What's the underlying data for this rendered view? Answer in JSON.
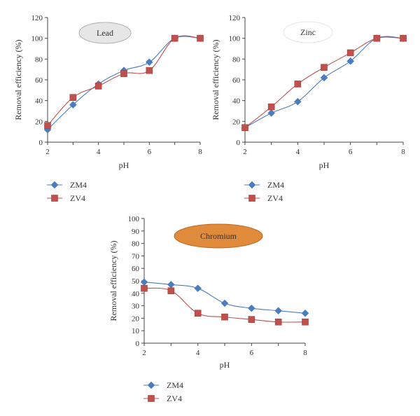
{
  "chart_data": [
    {
      "type": "line",
      "title": "Lead",
      "xlabel": "pH",
      "ylabel": "Removal efficiency (%)",
      "xlim": [
        2,
        8
      ],
      "ylim": [
        0,
        120
      ],
      "xticks": [
        2,
        4,
        6,
        8
      ],
      "yticks": [
        0,
        20,
        40,
        60,
        80,
        100,
        120
      ],
      "x": [
        2,
        3,
        4,
        5,
        6,
        7,
        8
      ],
      "series": [
        {
          "name": "ZM4",
          "values": [
            12,
            36,
            56,
            69,
            77,
            100,
            100
          ],
          "color": "#4a7cc0",
          "marker": "diamond"
        },
        {
          "name": "ZV4",
          "values": [
            16,
            43,
            54,
            66,
            69,
            100,
            100
          ],
          "color": "#c0504d",
          "marker": "square"
        }
      ],
      "badge": {
        "fill": "#e6e6e6",
        "stroke": "#b0b0b0"
      },
      "legend_position": "bottom-left"
    },
    {
      "type": "line",
      "title": "Zinc",
      "xlabel": "pH",
      "ylabel": "Removal efficiency (%)",
      "xlim": [
        2,
        8
      ],
      "ylim": [
        0,
        120
      ],
      "xticks": [
        2,
        4,
        6,
        8
      ],
      "yticks": [
        0,
        20,
        40,
        60,
        80,
        100,
        120
      ],
      "x": [
        2,
        3,
        4,
        5,
        6,
        7,
        8
      ],
      "series": [
        {
          "name": "ZM4",
          "values": [
            14,
            28,
            39,
            62,
            78,
            100,
            100
          ],
          "color": "#4a7cc0",
          "marker": "diamond"
        },
        {
          "name": "ZV4",
          "values": [
            14,
            34,
            56,
            72,
            86,
            100,
            100
          ],
          "color": "#c0504d",
          "marker": "square"
        }
      ],
      "badge": {
        "fill": "#ffffff",
        "stroke": "#e4e4e4"
      },
      "legend_position": "bottom-left"
    },
    {
      "type": "line",
      "title": "Chromium",
      "xlabel": "pH",
      "ylabel": "Removal efficiency (%)",
      "xlim": [
        2,
        8
      ],
      "ylim": [
        0,
        100
      ],
      "xticks": [
        2,
        4,
        6,
        8
      ],
      "yticks": [
        0,
        10,
        20,
        30,
        40,
        50,
        60,
        70,
        80,
        90,
        100
      ],
      "x": [
        2,
        3,
        4,
        5,
        6,
        7,
        8
      ],
      "series": [
        {
          "name": "ZM4",
          "values": [
            49,
            47,
            44,
            32,
            28,
            26,
            24
          ],
          "color": "#4a7cc0",
          "marker": "diamond"
        },
        {
          "name": "ZV4",
          "values": [
            44,
            42,
            24,
            21,
            19,
            17,
            17
          ],
          "color": "#c0504d",
          "marker": "square"
        }
      ],
      "badge": {
        "fill": "#e08a3c",
        "stroke": "#c06a20"
      },
      "legend_position": "bottom-left"
    }
  ]
}
